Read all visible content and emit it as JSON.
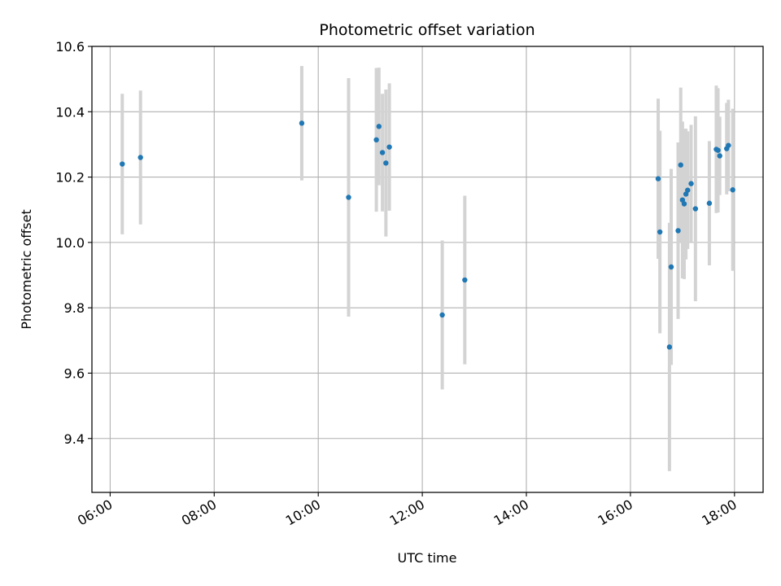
{
  "chart_data": {
    "type": "scatter",
    "title": "Photometric offset variation",
    "xlabel": "UTC time",
    "ylabel": "Photometric offset",
    "x_ticks": [
      "06:00",
      "08:00",
      "10:00",
      "12:00",
      "14:00",
      "16:00",
      "18:00"
    ],
    "y_ticks": [
      "9.4",
      "9.6",
      "9.8",
      "10.0",
      "10.2",
      "10.4",
      "10.6"
    ],
    "xlim": [
      "05:39",
      "18:33"
    ],
    "ylim": [
      9.235,
      10.6
    ],
    "grid": true,
    "series": [
      {
        "marker_color": "#1f77b4",
        "errorbar_color": "#d3d3d3",
        "points": [
          {
            "t": "06:14",
            "y": 10.24,
            "err": 0.215
          },
          {
            "t": "06:35",
            "y": 10.26,
            "err": 0.205
          },
          {
            "t": "09:41",
            "y": 10.365,
            "err": 0.175
          },
          {
            "t": "10:35",
            "y": 10.138,
            "err": 0.365
          },
          {
            "t": "11:07",
            "y": 10.314,
            "err": 0.22
          },
          {
            "t": "11:10",
            "y": 10.355,
            "err": 0.18
          },
          {
            "t": "11:14",
            "y": 10.275,
            "err": 0.18
          },
          {
            "t": "11:18",
            "y": 10.243,
            "err": 0.225
          },
          {
            "t": "11:22",
            "y": 10.292,
            "err": 0.195
          },
          {
            "t": "12:23",
            "y": 9.778,
            "err": 0.228
          },
          {
            "t": "12:49",
            "y": 9.885,
            "err": 0.258
          },
          {
            "t": "16:32",
            "y": 10.195,
            "err": 0.245
          },
          {
            "t": "16:34",
            "y": 10.032,
            "err": 0.31
          },
          {
            "t": "16:45",
            "y": 9.68,
            "err": 0.38
          },
          {
            "t": "16:47",
            "y": 9.925,
            "err": 0.3
          },
          {
            "t": "16:55",
            "y": 10.036,
            "err": 0.27
          },
          {
            "t": "16:58",
            "y": 10.237,
            "err": 0.237
          },
          {
            "t": "17:00",
            "y": 10.13,
            "err": 0.24
          },
          {
            "t": "17:02",
            "y": 10.118,
            "err": 0.23
          },
          {
            "t": "17:04",
            "y": 10.148,
            "err": 0.2
          },
          {
            "t": "17:06",
            "y": 10.16,
            "err": 0.18
          },
          {
            "t": "17:10",
            "y": 10.18,
            "err": 0.18
          },
          {
            "t": "17:15",
            "y": 10.103,
            "err": 0.283
          },
          {
            "t": "17:31",
            "y": 10.12,
            "err": 0.19
          },
          {
            "t": "17:39",
            "y": 10.285,
            "err": 0.195
          },
          {
            "t": "17:41",
            "y": 10.282,
            "err": 0.19
          },
          {
            "t": "17:43",
            "y": 10.265,
            "err": 0.12
          },
          {
            "t": "17:51",
            "y": 10.287,
            "err": 0.14
          },
          {
            "t": "17:53",
            "y": 10.297,
            "err": 0.14
          },
          {
            "t": "17:58",
            "y": 10.161,
            "err": 0.248
          }
        ]
      }
    ]
  }
}
